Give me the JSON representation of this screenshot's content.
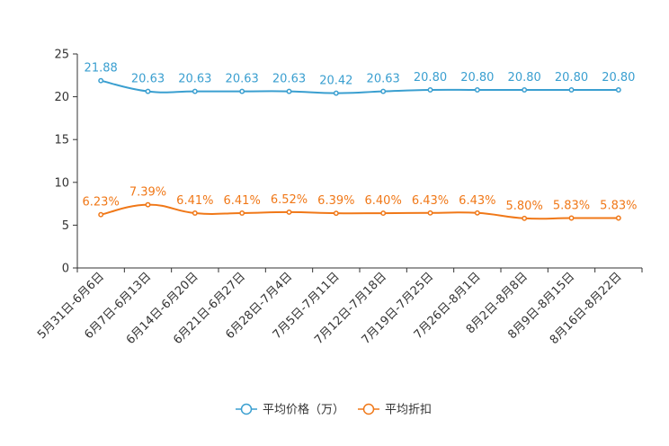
{
  "chart_data": {
    "type": "line",
    "title": "",
    "xlabel": "",
    "ylabel": "",
    "ylim": [
      0,
      25
    ],
    "yticks": [
      0,
      5,
      10,
      15,
      20,
      25
    ],
    "grid": false,
    "legend_position": "bottom-center",
    "categories": [
      "5月31日-6月6日",
      "6月7日-6月13日",
      "6月14日-6月20日",
      "6月21日-6月27日",
      "6月28日-7月4日",
      "7月5日-7月11日",
      "7月12日-7月18日",
      "7月19日-7月25日",
      "7月26日-8月1日",
      "8月2日-8月8日",
      "8月9日-8月15日",
      "8月16日-8月22日"
    ],
    "series": [
      {
        "name": "平均价格（万）",
        "color": "#3a9fd0",
        "values": [
          21.88,
          20.63,
          20.63,
          20.63,
          20.63,
          20.42,
          20.63,
          20.8,
          20.8,
          20.8,
          20.8,
          20.8
        ],
        "labels": [
          "21.88",
          "20.63",
          "20.63",
          "20.63",
          "20.63",
          "20.42",
          "20.63",
          "20.80",
          "20.80",
          "20.80",
          "20.80",
          "20.80"
        ]
      },
      {
        "name": "平均折扣",
        "color": "#f07818",
        "values": [
          6.23,
          7.39,
          6.41,
          6.41,
          6.52,
          6.39,
          6.4,
          6.43,
          6.43,
          5.8,
          5.83,
          5.83
        ],
        "labels": [
          "6.23%",
          "7.39%",
          "6.41%",
          "6.41%",
          "6.52%",
          "6.39%",
          "6.40%",
          "6.43%",
          "6.43%",
          "5.80%",
          "5.83%",
          "5.83%"
        ]
      }
    ]
  }
}
